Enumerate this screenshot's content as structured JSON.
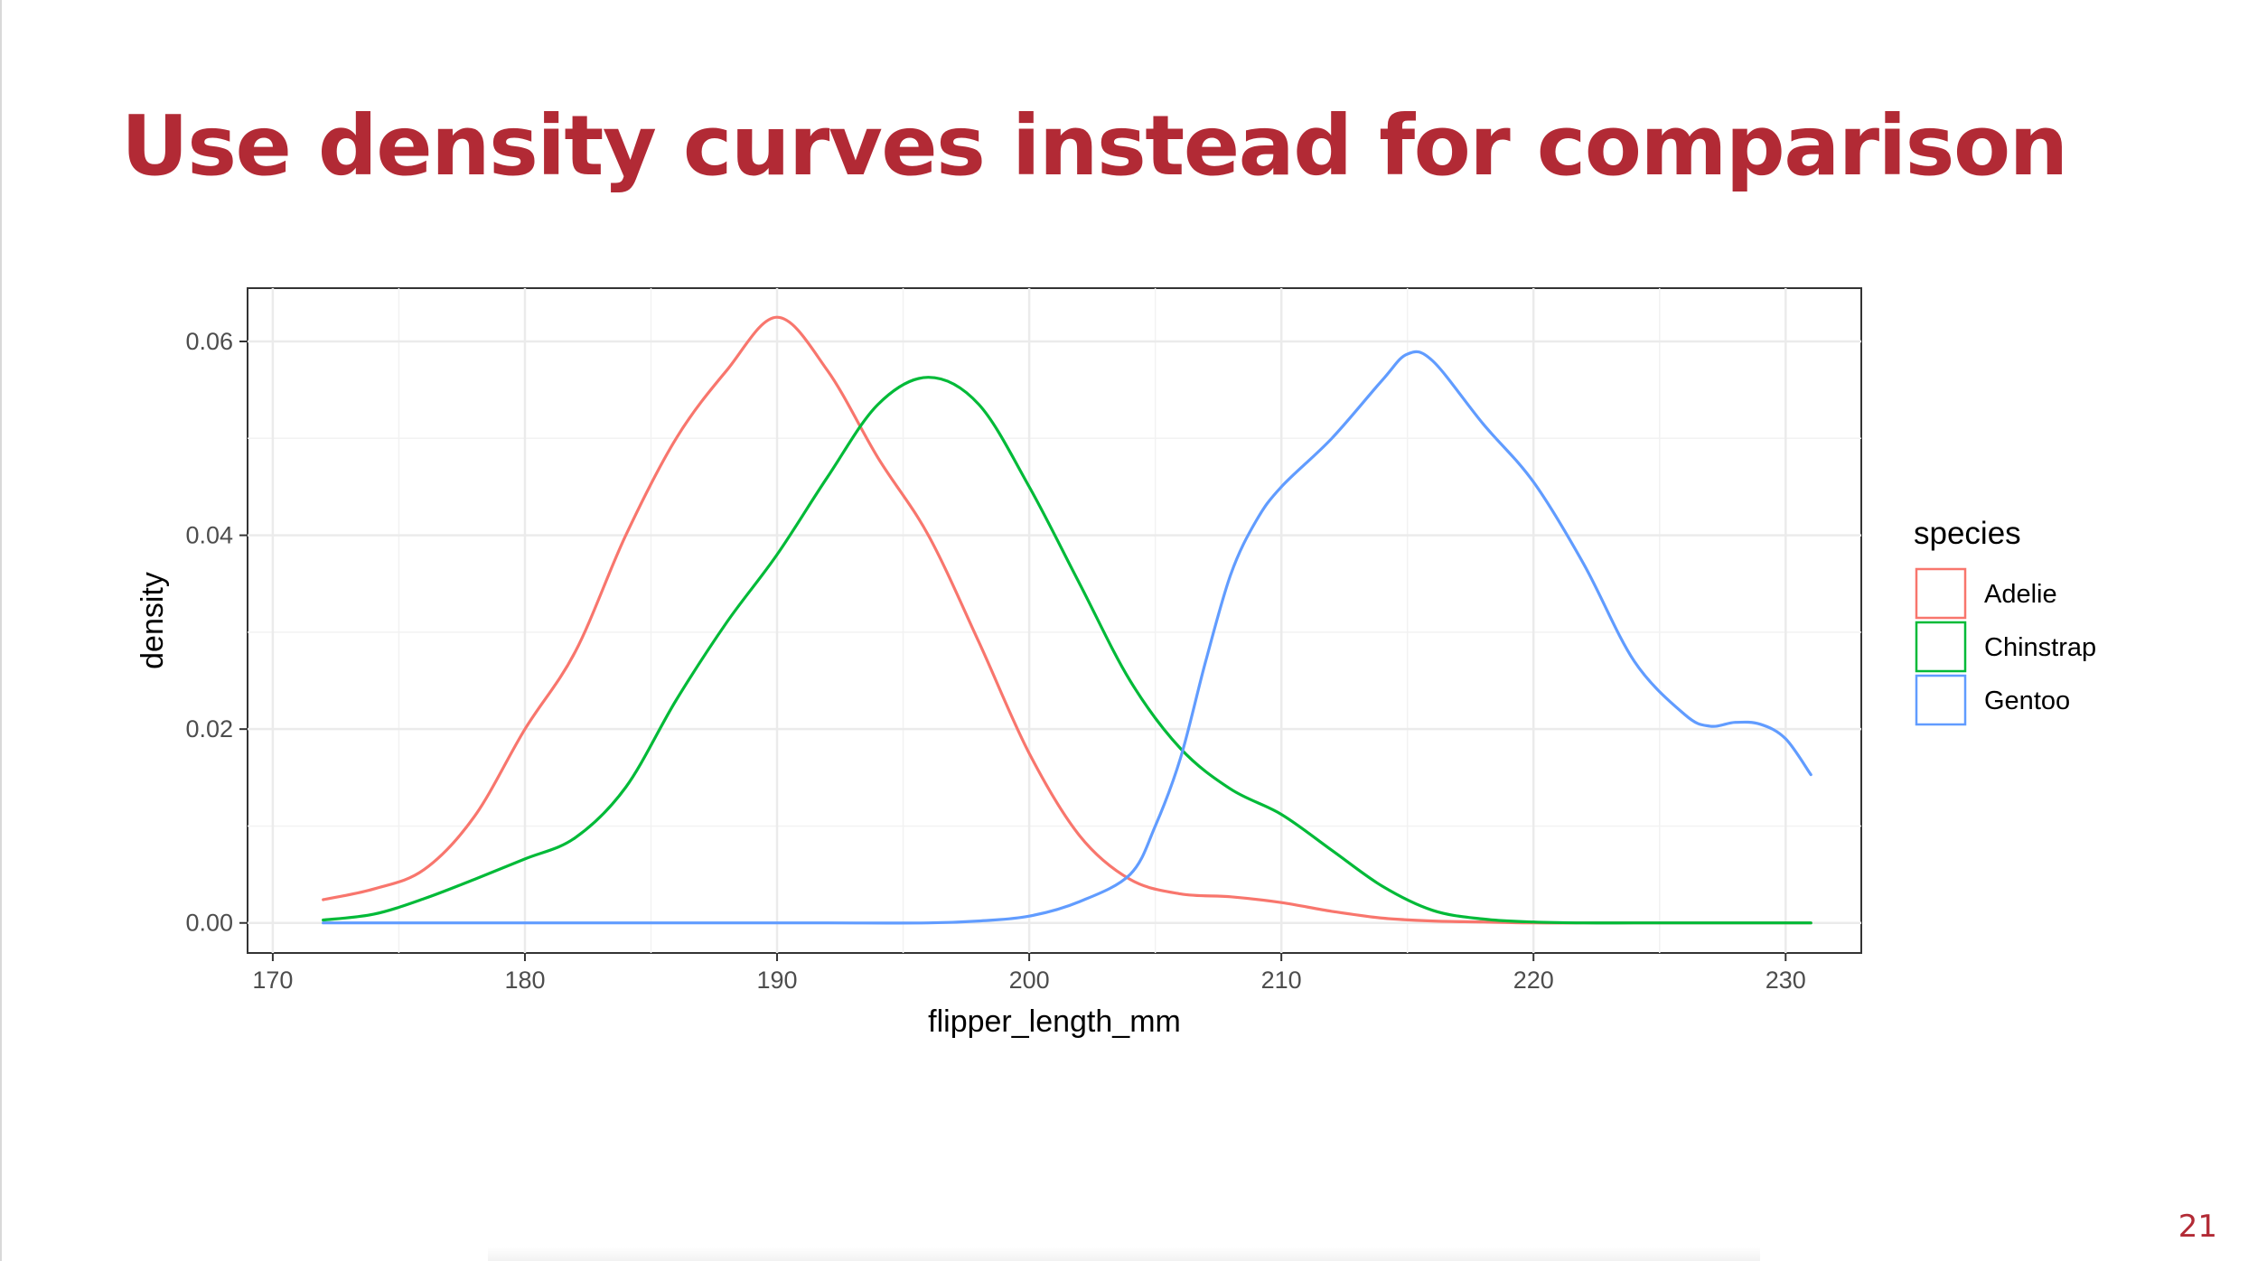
{
  "slide": {
    "title": "Use density curves instead for comparison",
    "page_number": "21"
  },
  "chart_data": {
    "type": "line",
    "title": "",
    "xlabel": "flipper_length_mm",
    "ylabel": "density",
    "xlim": [
      169,
      233
    ],
    "ylim": [
      -0.0031,
      0.0655
    ],
    "x_ticks": [
      170,
      180,
      190,
      200,
      210,
      220,
      230
    ],
    "x_tick_labels": [
      "170",
      "180",
      "190",
      "200",
      "210",
      "220",
      "230"
    ],
    "y_ticks": [
      0.0,
      0.02,
      0.04,
      0.06
    ],
    "y_tick_labels": [
      "0.00",
      "0.02",
      "0.04",
      "0.06"
    ],
    "grid": true,
    "legend": {
      "title": "species",
      "position": "right"
    },
    "series": [
      {
        "name": "Adelie",
        "color": "#F8766D",
        "x": [
          172,
          174,
          176,
          178,
          180,
          182,
          184,
          186,
          188,
          190,
          192,
          194,
          196,
          198,
          200,
          202,
          204,
          206,
          208,
          210,
          212,
          214,
          216,
          218,
          220,
          222,
          224,
          226,
          228,
          231
        ],
        "y": [
          0.0024,
          0.0035,
          0.0055,
          0.011,
          0.02,
          0.028,
          0.04,
          0.05,
          0.057,
          0.0625,
          0.057,
          0.048,
          0.04,
          0.029,
          0.0175,
          0.009,
          0.0045,
          0.003,
          0.0027,
          0.0021,
          0.0012,
          0.0005,
          0.0002,
          0.0001,
          0.0,
          0.0,
          0.0,
          0.0,
          0.0,
          0.0
        ]
      },
      {
        "name": "Chinstrap",
        "color": "#00BA38",
        "x": [
          172,
          174,
          176,
          178,
          180,
          182,
          184,
          186,
          188,
          190,
          192,
          194,
          196,
          198,
          200,
          202,
          204,
          206,
          208,
          210,
          212,
          214,
          216,
          218,
          220,
          222,
          224,
          226,
          228,
          231
        ],
        "y": [
          0.0003,
          0.0009,
          0.0025,
          0.0045,
          0.0066,
          0.0088,
          0.014,
          0.023,
          0.031,
          0.038,
          0.046,
          0.0535,
          0.0563,
          0.0535,
          0.045,
          0.035,
          0.025,
          0.018,
          0.0138,
          0.0112,
          0.0075,
          0.0038,
          0.0013,
          0.0004,
          0.0001,
          0.0,
          0.0,
          0.0,
          0.0,
          0.0
        ]
      },
      {
        "name": "Gentoo",
        "color": "#619CFF",
        "x": [
          172,
          176,
          180,
          184,
          188,
          192,
          196,
          198,
          200,
          202,
          204,
          205,
          206,
          207,
          208,
          209,
          210,
          212,
          214,
          215,
          216,
          218,
          220,
          222,
          224,
          226,
          227,
          228,
          229,
          230,
          231
        ],
        "y": [
          0.0,
          0.0,
          0.0,
          0.0,
          0.0,
          0.0,
          0.0,
          0.0002,
          0.0007,
          0.0022,
          0.005,
          0.01,
          0.017,
          0.027,
          0.036,
          0.0415,
          0.045,
          0.05,
          0.056,
          0.0587,
          0.058,
          0.0515,
          0.0455,
          0.037,
          0.027,
          0.0215,
          0.0203,
          0.0207,
          0.0205,
          0.019,
          0.0153
        ]
      }
    ]
  }
}
